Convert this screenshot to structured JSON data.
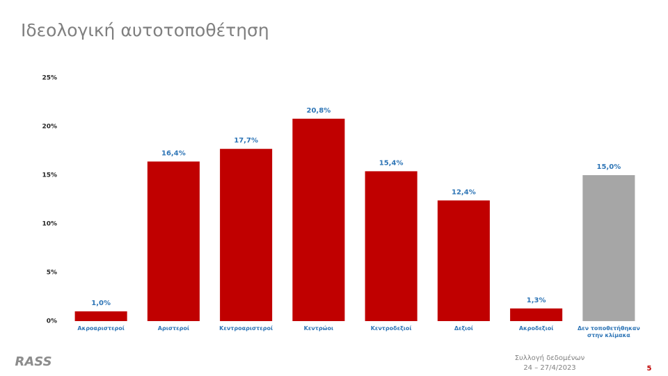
{
  "chart_data": {
    "type": "bar",
    "title": "Ιδεολογική αυτοτοποθέτηση",
    "categories": [
      "Ακροαριστεροί",
      "Αριστεροί",
      "Κεντροαριστεροί",
      "Κεντρώοι",
      "Κεντροδεξιοί",
      "Δεξιοί",
      "Ακροδεξιοί",
      "Δεν τοποθετήθηκαν στην κλίμακα"
    ],
    "values": [
      1.0,
      16.4,
      17.7,
      20.8,
      15.4,
      12.4,
      1.3,
      15.0
    ],
    "value_labels": [
      "1,0%",
      "16,4%",
      "17,7%",
      "20,8%",
      "15,4%",
      "12,4%",
      "1,3%",
      "15,0%"
    ],
    "colors": [
      "#c00000",
      "#c00000",
      "#c00000",
      "#c00000",
      "#c00000",
      "#c00000",
      "#c00000",
      "#a6a6a6"
    ],
    "ylim": [
      0,
      25
    ],
    "yticks": [
      {
        "value": 0,
        "label": "0%"
      },
      {
        "value": 5,
        "label": "5%"
      },
      {
        "value": 10,
        "label": "10%"
      },
      {
        "value": 15,
        "label": "15%"
      },
      {
        "value": 20,
        "label": "20%"
      },
      {
        "value": 25,
        "label": "25%"
      }
    ],
    "grid": false
  },
  "footer": {
    "logo": "RASS",
    "note": "Συλλογή δεδομένων",
    "dates": "24 – 27/4/2023",
    "page": "5"
  }
}
